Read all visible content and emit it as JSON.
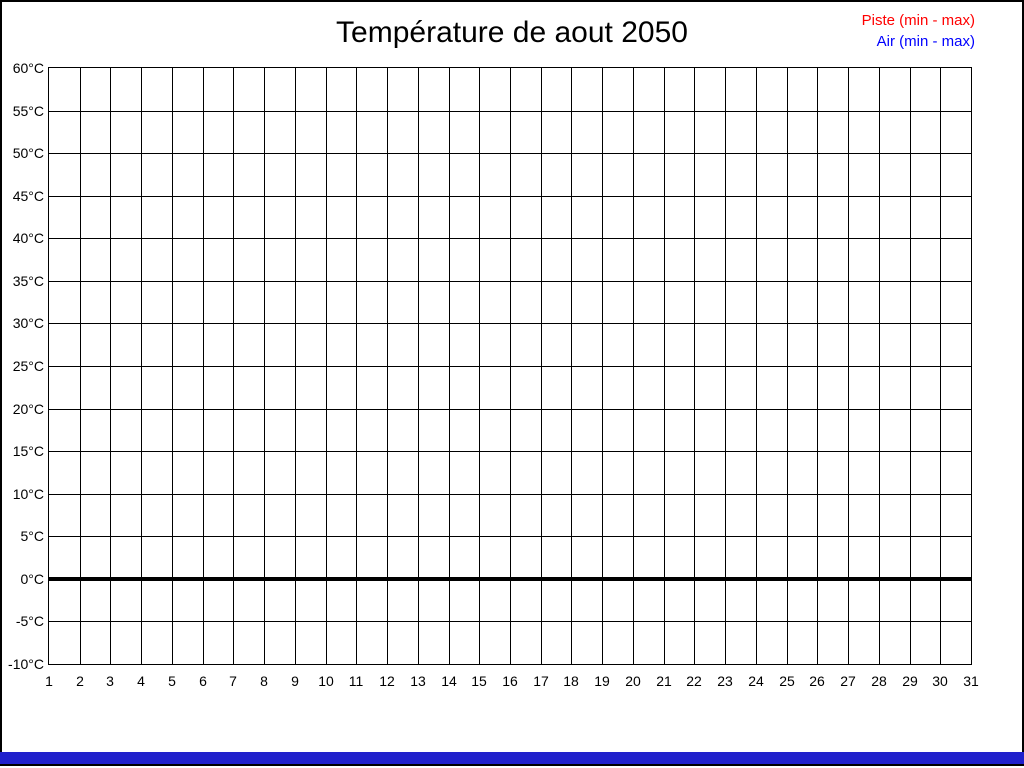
{
  "window": {
    "title": "Température de aout 2050"
  },
  "legend": {
    "items": [
      {
        "label": "Piste (min - max)",
        "color": "#ff0000"
      },
      {
        "label": "Air (min - max)",
        "color": "#0000ff"
      }
    ]
  },
  "chart_data": {
    "type": "line",
    "title": "Température de aout 2050",
    "xlabel": "",
    "ylabel": "",
    "xlim": [
      1,
      31
    ],
    "ylim": [
      -10,
      60
    ],
    "y_step": 5,
    "grid": true,
    "grid_color": "#000000",
    "legend_position": "top-right",
    "emphasized_y": 0,
    "zero_line_color": "#000000",
    "x_ticks": [
      "1",
      "2",
      "3",
      "4",
      "5",
      "6",
      "7",
      "8",
      "9",
      "10",
      "11",
      "12",
      "13",
      "14",
      "15",
      "16",
      "17",
      "18",
      "19",
      "20",
      "21",
      "22",
      "23",
      "24",
      "25",
      "26",
      "27",
      "28",
      "29",
      "30",
      "31"
    ],
    "y_ticks": [
      {
        "value": 60,
        "label": "60°C"
      },
      {
        "value": 55,
        "label": "55°C"
      },
      {
        "value": 50,
        "label": "50°C"
      },
      {
        "value": 45,
        "label": "45°C"
      },
      {
        "value": 40,
        "label": "40°C"
      },
      {
        "value": 35,
        "label": "35°C"
      },
      {
        "value": 30,
        "label": "30°C"
      },
      {
        "value": 25,
        "label": "25°C"
      },
      {
        "value": 20,
        "label": "20°C"
      },
      {
        "value": 15,
        "label": "15°C"
      },
      {
        "value": 10,
        "label": "10°C"
      },
      {
        "value": 5,
        "label": "5°C"
      },
      {
        "value": 0,
        "label": "0°C"
      },
      {
        "value": -5,
        "label": "-5°C"
      },
      {
        "value": -10,
        "label": "-10°C"
      }
    ],
    "series": [
      {
        "name": "Piste (min - max)",
        "color": "#ff0000",
        "x": [],
        "values": []
      },
      {
        "name": "Air (min - max)",
        "color": "#0000ff",
        "x": [],
        "values": []
      }
    ]
  },
  "footer": {
    "bar_color": "#2020cc"
  }
}
